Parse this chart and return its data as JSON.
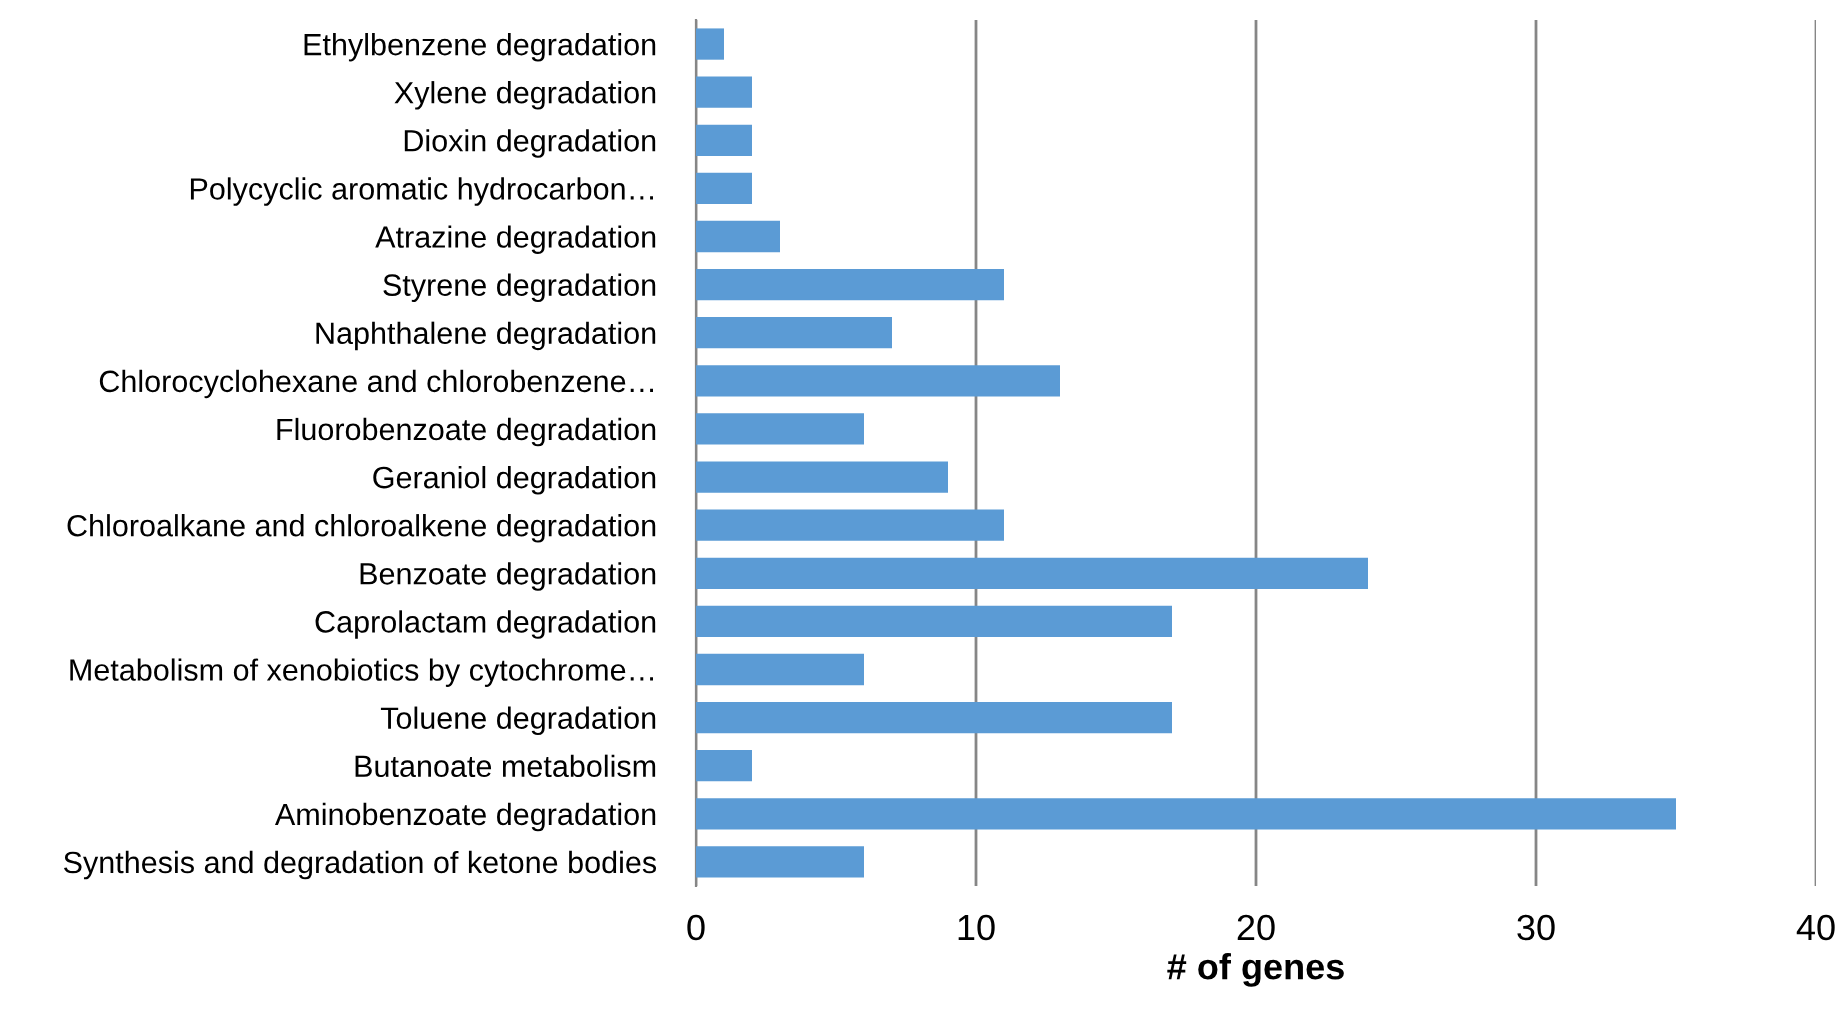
{
  "chart_data": {
    "type": "bar",
    "orientation": "horizontal",
    "xlabel": "# of genes",
    "categories": [
      "Ethylbenzene degradation",
      "Xylene degradation",
      "Dioxin degradation",
      "Polycyclic aromatic hydrocarbon…",
      "Atrazine degradation",
      "Styrene degradation",
      "Naphthalene degradation",
      "Chlorocyclohexane and chlorobenzene…",
      "Fluorobenzoate degradation",
      "Geraniol degradation",
      "Chloroalkane and chloroalkene degradation",
      "Benzoate degradation",
      "Caprolactam degradation",
      "Metabolism of xenobiotics by cytochrome…",
      "Toluene degradation",
      "Butanoate metabolism",
      "Aminobenzoate degradation",
      "Synthesis and degradation of ketone bodies"
    ],
    "values": [
      1,
      2,
      2,
      2,
      3,
      11,
      7,
      13,
      6,
      9,
      11,
      24,
      17,
      6,
      17,
      2,
      35,
      6
    ],
    "color": "#5b9bd5",
    "xlim": [
      0,
      40
    ],
    "xticks": [
      0,
      10,
      20,
      30,
      40
    ],
    "grid": "x"
  }
}
